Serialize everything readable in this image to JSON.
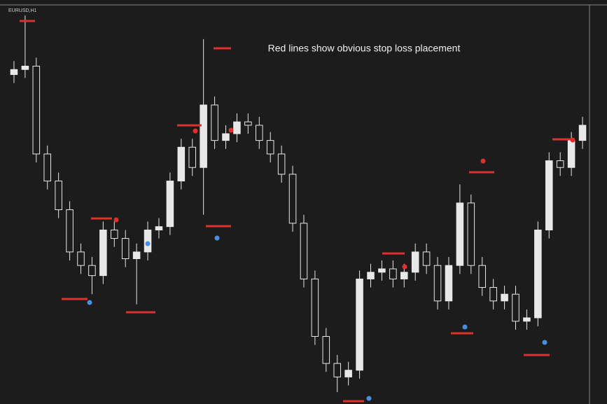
{
  "chart_data": {
    "type": "candlestick",
    "title": "EURUSD,H1",
    "annotation": "Red lines show obvious stop loss placement",
    "color": "#e8e8e8",
    "ylim": [
      1.11,
      1.1335
    ],
    "open": [
      1.1295,
      1.1298,
      1.13,
      1.1248,
      1.1232,
      1.1215,
      1.119,
      1.1182,
      1.1176,
      1.1203,
      1.1198,
      1.1186,
      1.119,
      1.1203,
      1.1205,
      1.1232,
      1.1252,
      1.124,
      1.1277,
      1.1256,
      1.126,
      1.1267,
      1.1265,
      1.1256,
      1.1248,
      1.1236,
      1.1207,
      1.1174,
      1.114,
      1.1124,
      1.1116,
      1.112,
      1.1174,
      1.1178,
      1.118,
      1.1174,
      1.1178,
      1.119,
      1.1182,
      1.1161,
      1.1182,
      1.1219,
      1.1182,
      1.1169,
      1.1161,
      1.1165,
      1.1149,
      1.1151,
      1.1203,
      1.1244,
      1.124,
      1.1256
    ],
    "high": [
      1.1303,
      1.133,
      1.1305,
      1.1253,
      1.1237,
      1.122,
      1.1195,
      1.1187,
      1.1208,
      1.1208,
      1.1203,
      1.1195,
      1.1208,
      1.121,
      1.1237,
      1.1257,
      1.1257,
      1.1316,
      1.1282,
      1.1265,
      1.1272,
      1.1272,
      1.127,
      1.1261,
      1.1253,
      1.1241,
      1.1212,
      1.1179,
      1.1145,
      1.1129,
      1.1125,
      1.1179,
      1.1183,
      1.1185,
      1.1185,
      1.1183,
      1.1195,
      1.1195,
      1.1187,
      1.1187,
      1.123,
      1.1224,
      1.1187,
      1.1174,
      1.117,
      1.117,
      1.1156,
      1.1208,
      1.1249,
      1.1249,
      1.1261,
      1.127
    ],
    "low": [
      1.129,
      1.1293,
      1.1243,
      1.1227,
      1.121,
      1.1185,
      1.1177,
      1.1165,
      1.1171,
      1.1193,
      1.1181,
      1.1159,
      1.1185,
      1.1198,
      1.12,
      1.1227,
      1.1235,
      1.1212,
      1.1251,
      1.1251,
      1.1255,
      1.126,
      1.1251,
      1.1243,
      1.1231,
      1.1202,
      1.1169,
      1.1135,
      1.1119,
      1.1107,
      1.1111,
      1.1115,
      1.1169,
      1.1173,
      1.1169,
      1.1169,
      1.1173,
      1.1177,
      1.1156,
      1.1156,
      1.1177,
      1.1177,
      1.1164,
      1.1156,
      1.1156,
      1.1144,
      1.1144,
      1.1146,
      1.1198,
      1.1235,
      1.1235,
      1.1251
    ],
    "close": [
      1.1298,
      1.13,
      1.1248,
      1.1232,
      1.1215,
      1.119,
      1.1182,
      1.1176,
      1.1203,
      1.1198,
      1.1186,
      1.119,
      1.1203,
      1.1205,
      1.1232,
      1.1252,
      1.124,
      1.1277,
      1.1256,
      1.126,
      1.1267,
      1.1265,
      1.1256,
      1.1248,
      1.1236,
      1.1207,
      1.1174,
      1.114,
      1.1124,
      1.1116,
      1.112,
      1.1174,
      1.1178,
      1.118,
      1.1174,
      1.1178,
      1.119,
      1.1182,
      1.1161,
      1.1182,
      1.1219,
      1.1182,
      1.1169,
      1.1161,
      1.1165,
      1.1149,
      1.1151,
      1.1203,
      1.1244,
      1.124,
      1.1256,
      1.1265
    ]
  }
}
